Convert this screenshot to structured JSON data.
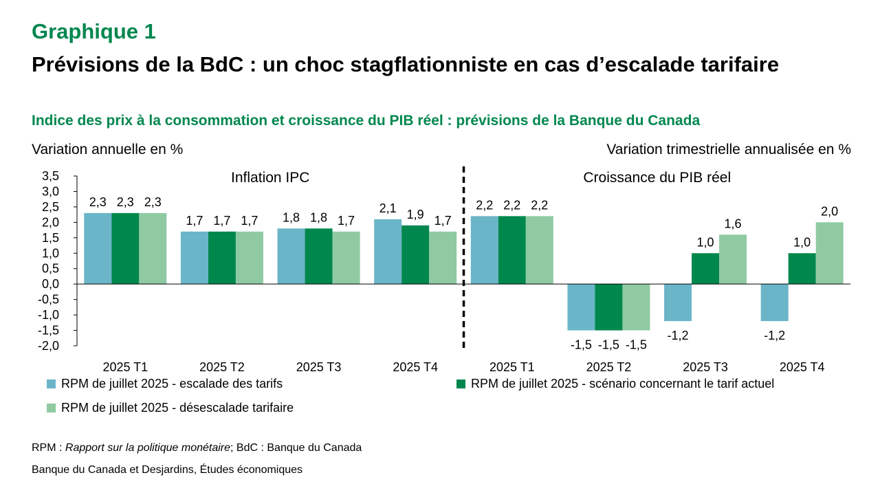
{
  "header": {
    "graph_number": "Graphique 1",
    "title": "Prévisions de la BdC : un choc stagflationniste en cas d’escalade tarifaire",
    "subtitle": "Indice des prix à la consommation et croissance du PIB réel : prévisions de la Banque du Canada",
    "left_unit": "Variation annuelle en %",
    "right_unit": "Variation trimestrielle annualisée en %"
  },
  "colors": {
    "escalade": "#6bb5c8",
    "actuel": "#00874e",
    "desescalade": "#8fcaa3",
    "title_green": "#00874e"
  },
  "chart_data": {
    "type": "bar",
    "ylim": [
      -2.0,
      3.5
    ],
    "yticks": [
      "3,5",
      "3,0",
      "2,5",
      "2,0",
      "1,5",
      "1,0",
      "0,5",
      "0,0",
      "-0,5",
      "-1,0",
      "-1,5",
      "-2,0"
    ],
    "ytick_values": [
      3.5,
      3.0,
      2.5,
      2.0,
      1.5,
      1.0,
      0.5,
      0.0,
      -0.5,
      -1.0,
      -1.5,
      -2.0
    ],
    "panels": [
      {
        "label": "Inflation IPC",
        "categories": [
          "2025 T1",
          "2025 T2",
          "2025 T3",
          "2025 T4"
        ],
        "series": [
          {
            "name": "RPM de juillet 2025 - escalade des tarifs",
            "color_key": "escalade",
            "values": [
              2.3,
              1.7,
              1.8,
              2.1
            ],
            "labels": [
              "2,3",
              "1,7",
              "1,8",
              "2,1"
            ]
          },
          {
            "name": "RPM de juillet 2025 - scénario concernant le tarif actuel",
            "color_key": "actuel",
            "values": [
              2.3,
              1.7,
              1.8,
              1.9
            ],
            "labels": [
              "2,3",
              "1,7",
              "1,8",
              "1,9"
            ]
          },
          {
            "name": "RPM de juillet 2025 - désescalade tarifaire",
            "color_key": "desescalade",
            "values": [
              2.3,
              1.7,
              1.7,
              1.7
            ],
            "labels": [
              "2,3",
              "1,7",
              "1,7",
              "1,7"
            ]
          }
        ]
      },
      {
        "label": "Croissance du PIB réel",
        "categories": [
          "2025 T1",
          "2025 T2",
          "2025 T3",
          "2025 T4"
        ],
        "series": [
          {
            "name": "RPM de juillet 2025 - escalade des tarifs",
            "color_key": "escalade",
            "values": [
              2.2,
              -1.5,
              -1.2,
              -1.2
            ],
            "labels": [
              "2,2",
              "-1,5",
              "-1,2",
              "-1,2"
            ]
          },
          {
            "name": "RPM de juillet 2025 - scénario concernant le tarif actuel",
            "color_key": "actuel",
            "values": [
              2.2,
              -1.5,
              1.0,
              1.0
            ],
            "labels": [
              "2,2",
              "-1,5",
              "1,0",
              "1,0"
            ]
          },
          {
            "name": "RPM de juillet 2025 - désescalade tarifaire",
            "color_key": "desescalade",
            "values": [
              2.2,
              -1.5,
              1.6,
              2.0
            ],
            "labels": [
              "2,2",
              "-1,5",
              "1,6",
              "2,0"
            ]
          }
        ]
      }
    ],
    "legend": [
      {
        "name": "RPM de juillet 2025 - escalade des tarifs",
        "color_key": "escalade"
      },
      {
        "name": "RPM de juillet 2025 - scénario concernant le tarif actuel",
        "color_key": "actuel"
      },
      {
        "name": "RPM de juillet 2025 - désescalade tarifaire",
        "color_key": "desescalade"
      }
    ]
  },
  "footer": {
    "note_prefix": "RPM : ",
    "note_italic": "Rapport sur la politique monétaire",
    "note_suffix": "; BdC : Banque du Canada",
    "source": "Banque du Canada et Desjardins, Études économiques"
  }
}
